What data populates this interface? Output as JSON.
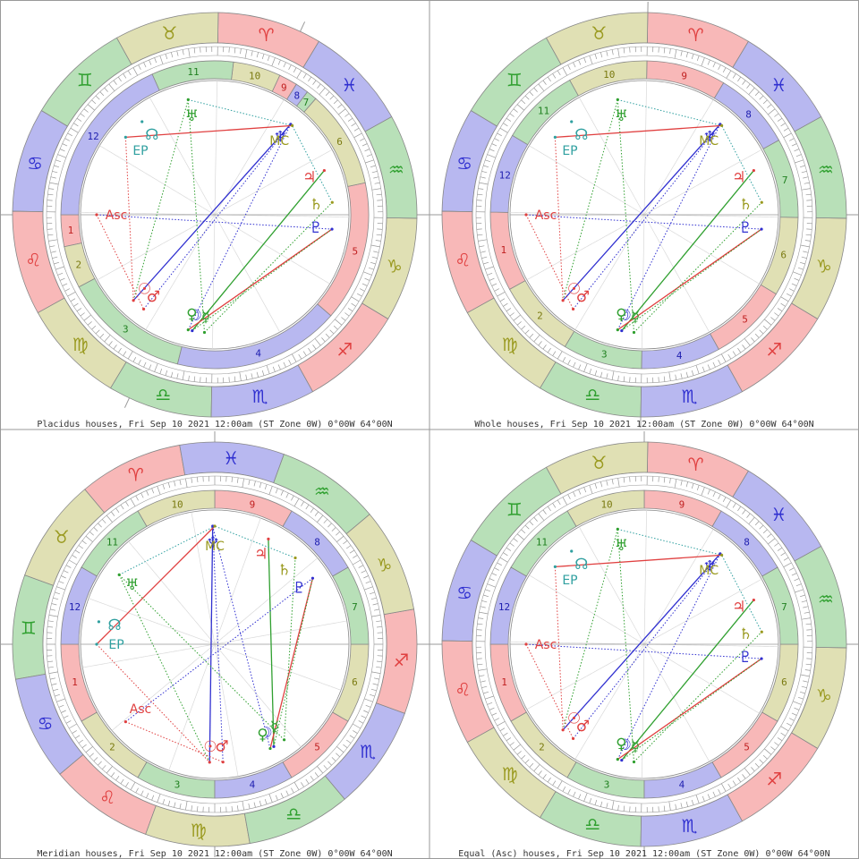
{
  "sign_glyphs": [
    "♈",
    "♉",
    "♊",
    "♋",
    "♌",
    "♍",
    "♎",
    "♏",
    "♐",
    "♑",
    "♒",
    "♓"
  ],
  "sign_fill": [
    "#f8b8b8",
    "#e0e0b4",
    "#b8e0b8",
    "#b8b8f0",
    "#f8b8b8",
    "#e0e0b4",
    "#b8e0b8",
    "#b8b8f0",
    "#f8b8b8",
    "#e0e0b4",
    "#b8e0b8",
    "#b8b8f0"
  ],
  "sign_glyph_color": [
    "#e04040",
    "#9a9a20",
    "#30a030",
    "#3030d0",
    "#e04040",
    "#9a9a20",
    "#30a030",
    "#3030d0",
    "#e04040",
    "#9a9a20",
    "#30a030",
    "#3030d0"
  ],
  "planets": [
    {
      "key": "sun",
      "glyph": "☉",
      "color": "#e04040",
      "lon": 167.5
    },
    {
      "key": "moon",
      "glyph": "☽",
      "color": "#3030d0",
      "lon": 200
    },
    {
      "key": "mercury",
      "glyph": "☿",
      "color": "#30a030",
      "lon": 206
    },
    {
      "key": "venus",
      "glyph": "♀",
      "color": "#30a030",
      "lon": 198
    },
    {
      "key": "mars",
      "glyph": "♂",
      "color": "#e04040",
      "lon": 174
    },
    {
      "key": "jupiter",
      "glyph": "♃",
      "color": "#e04040",
      "lon": 323
    },
    {
      "key": "saturn",
      "glyph": "♄",
      "color": "#9a9a20",
      "lon": 307
    },
    {
      "key": "uranus",
      "glyph": "♅",
      "color": "#30a030",
      "lon": 44
    },
    {
      "key": "neptune",
      "glyph": "♆",
      "color": "#3030d0",
      "lon": 351
    },
    {
      "key": "pluto",
      "glyph": "♇",
      "color": "#3030d0",
      "lon": 294
    },
    {
      "key": "node",
      "glyph": "☊",
      "color": "#30a0a0",
      "lon": 69
    }
  ],
  "points": [
    {
      "key": "asc",
      "label": "Asc",
      "color": "#e04040",
      "lon": 121
    },
    {
      "key": "mc",
      "label": "MC",
      "color": "#9a9a20",
      "lon": 350
    },
    {
      "key": "ep",
      "label": "EP",
      "color": "#30a0a0",
      "lon": 80
    }
  ],
  "aspects": [
    {
      "a": "sun",
      "b": "neptune",
      "color": "#3030d0",
      "style": "solid"
    },
    {
      "a": "sun",
      "b": "uranus",
      "color": "#30a030",
      "style": "dot"
    },
    {
      "a": "mars",
      "b": "neptune",
      "color": "#3030d0",
      "style": "dot"
    },
    {
      "a": "moon",
      "b": "jupiter",
      "color": "#30a030",
      "style": "solid"
    },
    {
      "a": "venus",
      "b": "pluto",
      "color": "#e04040",
      "style": "solid"
    },
    {
      "a": "mercury",
      "b": "saturn",
      "color": "#30a030",
      "style": "dot"
    },
    {
      "a": "venus",
      "b": "neptune",
      "color": "#3030d0",
      "style": "dot"
    },
    {
      "a": "ep",
      "b": "mc",
      "color": "#e04040",
      "style": "solid"
    },
    {
      "a": "uranus",
      "b": "mc",
      "color": "#30a0a0",
      "style": "dot"
    },
    {
      "a": "asc",
      "b": "pluto",
      "color": "#3030d0",
      "style": "dot"
    },
    {
      "a": "asc",
      "b": "mars",
      "color": "#e04040",
      "style": "dot"
    },
    {
      "a": "ep",
      "b": "sun",
      "color": "#e04040",
      "style": "dot"
    },
    {
      "a": "moon",
      "b": "pluto",
      "color": "#30a030",
      "style": "dot"
    },
    {
      "a": "mercury",
      "b": "uranus",
      "color": "#30a030",
      "style": "dot"
    },
    {
      "a": "saturn",
      "b": "mc",
      "color": "#30a0a0",
      "style": "dot"
    }
  ],
  "charts": [
    {
      "key": "placidus",
      "caption": "Placidus houses, Fri Sep 10 2021 12:00am (ST Zone 0W)   0°00W 64°00N",
      "left_lon": 121,
      "cusps": [
        121,
        133,
        149,
        197,
        260,
        313,
        350,
        354,
        359,
        6,
        24,
        55
      ],
      "house_fill": [
        "#f8b8b8",
        "#e0e0b4",
        "#b8e0b8",
        "#b8b8f0",
        "#f8b8b8",
        "#e0e0b4",
        "#b8e0b8",
        "#b8b8f0",
        "#f8b8b8",
        "#e0e0b4",
        "#b8e0b8",
        "#b8b8f0"
      ],
      "house_text": [
        "#c02020",
        "#7a7a10",
        "#208020",
        "#2020b0",
        "#c02020",
        "#7a7a10",
        "#208020",
        "#2020b0",
        "#c02020",
        "#7a7a10",
        "#208020",
        "#2020b0"
      ]
    },
    {
      "key": "whole",
      "caption": "Whole houses, Fri Sep 10 2021 12:00am (ST Zone 0W)   0°00W 64°00N",
      "left_lon": 121,
      "cusps": [
        120,
        150,
        180,
        210,
        240,
        270,
        300,
        330,
        0,
        30,
        60,
        90
      ],
      "house_fill": [
        "#f8b8b8",
        "#e0e0b4",
        "#b8e0b8",
        "#b8b8f0",
        "#f8b8b8",
        "#e0e0b4",
        "#b8e0b8",
        "#b8b8f0",
        "#f8b8b8",
        "#e0e0b4",
        "#b8e0b8",
        "#b8b8f0"
      ],
      "house_text": [
        "#c02020",
        "#7a7a10",
        "#208020",
        "#2020b0",
        "#c02020",
        "#7a7a10",
        "#208020",
        "#2020b0",
        "#c02020",
        "#7a7a10",
        "#208020",
        "#2020b0"
      ]
    },
    {
      "key": "meridian",
      "caption": "Meridian houses, Fri Sep 10 2021 12:00am (ST Zone 0W)   0°00W 64°00N",
      "left_lon": 80,
      "cusps": [
        80,
        110,
        140,
        170,
        200,
        230,
        260,
        290,
        320,
        350,
        20,
        50
      ],
      "house_fill": [
        "#f8b8b8",
        "#e0e0b4",
        "#b8e0b8",
        "#b8b8f0",
        "#f8b8b8",
        "#e0e0b4",
        "#b8e0b8",
        "#b8b8f0",
        "#f8b8b8",
        "#e0e0b4",
        "#b8e0b8",
        "#b8b8f0"
      ],
      "house_text": [
        "#c02020",
        "#7a7a10",
        "#208020",
        "#2020b0",
        "#c02020",
        "#7a7a10",
        "#208020",
        "#2020b0",
        "#c02020",
        "#7a7a10",
        "#208020",
        "#2020b0"
      ]
    },
    {
      "key": "equal",
      "caption": "Equal (Asc) houses, Fri Sep 10 2021 12:00am (ST Zone 0W)   0°00W 64°00N",
      "left_lon": 121,
      "cusps": [
        121,
        151,
        181,
        211,
        241,
        271,
        301,
        331,
        1,
        31,
        61,
        91
      ],
      "house_fill": [
        "#f8b8b8",
        "#e0e0b4",
        "#b8e0b8",
        "#b8b8f0",
        "#f8b8b8",
        "#e0e0b4",
        "#b8e0b8",
        "#b8b8f0",
        "#f8b8b8",
        "#e0e0b4",
        "#b8e0b8",
        "#b8b8f0"
      ],
      "house_text": [
        "#c02020",
        "#7a7a10",
        "#208020",
        "#2020b0",
        "#c02020",
        "#7a7a10",
        "#208020",
        "#2020b0",
        "#c02020",
        "#7a7a10",
        "#208020",
        "#2020b0"
      ]
    }
  ]
}
